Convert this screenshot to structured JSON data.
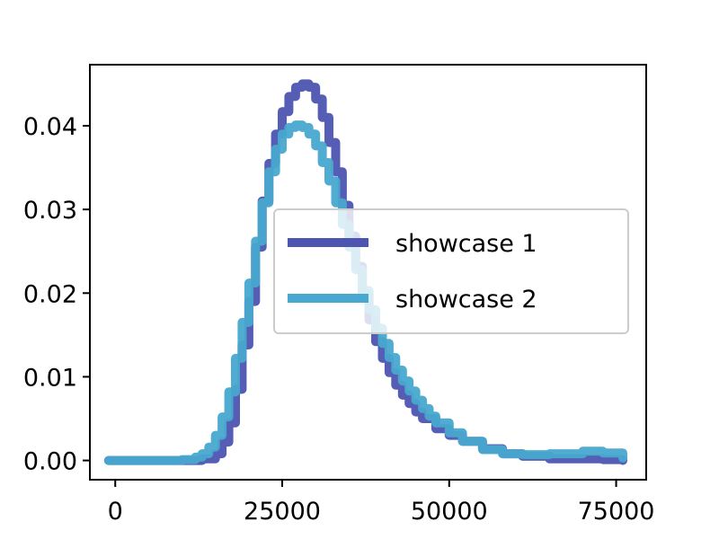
{
  "chart_data": {
    "type": "line",
    "title": "",
    "xlabel": "",
    "ylabel": "",
    "xlim": [
      -3800,
      79500
    ],
    "ylim": [
      -0.0023,
      0.0473
    ],
    "xticks": [
      0,
      25000,
      50000,
      75000
    ],
    "xtick_labels": [
      "0",
      "25000",
      "50000",
      "75000"
    ],
    "yticks": [
      0.0,
      0.01,
      0.02,
      0.03,
      0.04
    ],
    "ytick_labels": [
      "0.00",
      "0.01",
      "0.02",
      "0.03",
      "0.04"
    ],
    "grid": false,
    "legend": {
      "position": "center-right"
    },
    "series": [
      {
        "name": "showcase 1",
        "color": "#4c55b0",
        "x": [
          -1000,
          5000,
          10000,
          13000,
          15000,
          16000,
          17000,
          18000,
          19000,
          20000,
          21000,
          22000,
          23000,
          24000,
          25000,
          26000,
          27000,
          28000,
          29000,
          30000,
          31000,
          32000,
          33000,
          34000,
          35000,
          36000,
          37000,
          38000,
          39000,
          40000,
          41000,
          42000,
          43000,
          44000,
          45000,
          46000,
          48000,
          50000,
          52000,
          55000,
          58000,
          61000,
          65000,
          70000,
          73000,
          76000
        ],
        "y": [
          0.0,
          0.0,
          0.0,
          0.0002,
          0.0008,
          0.0022,
          0.0045,
          0.0085,
          0.0138,
          0.019,
          0.0255,
          0.031,
          0.0355,
          0.039,
          0.0417,
          0.0435,
          0.0446,
          0.045,
          0.0446,
          0.0432,
          0.041,
          0.038,
          0.0345,
          0.0305,
          0.0268,
          0.0232,
          0.0198,
          0.0168,
          0.0142,
          0.0122,
          0.0105,
          0.009,
          0.0078,
          0.0068,
          0.0058,
          0.005,
          0.0038,
          0.003,
          0.0023,
          0.0014,
          0.0008,
          0.0005,
          0.0002,
          0.0002,
          0.0001,
          0.0
        ]
      },
      {
        "name": "showcase 2",
        "color": "#48a8cf",
        "x": [
          -1000,
          5000,
          10000,
          12000,
          13000,
          14000,
          15000,
          16000,
          17000,
          18000,
          19000,
          20000,
          21000,
          22000,
          23000,
          24000,
          25000,
          26000,
          27000,
          28000,
          29000,
          30000,
          31000,
          32000,
          33000,
          34000,
          35000,
          36000,
          37000,
          38000,
          39000,
          40000,
          41000,
          42000,
          43000,
          44000,
          45000,
          46000,
          47000,
          48000,
          50000,
          52000,
          55000,
          58000,
          61000,
          65000,
          70000,
          73000,
          76000
        ],
        "y": [
          0.0,
          0.0,
          0.0001,
          0.0004,
          0.0008,
          0.0016,
          0.003,
          0.0052,
          0.0082,
          0.0122,
          0.0165,
          0.0212,
          0.0262,
          0.0308,
          0.0345,
          0.0372,
          0.039,
          0.0398,
          0.0401,
          0.0398,
          0.039,
          0.0376,
          0.0356,
          0.0334,
          0.0308,
          0.0282,
          0.0255,
          0.0228,
          0.0203,
          0.018,
          0.0158,
          0.014,
          0.0123,
          0.0108,
          0.0095,
          0.0083,
          0.0072,
          0.0062,
          0.0053,
          0.0045,
          0.0033,
          0.0023,
          0.0013,
          0.0008,
          0.0007,
          0.0008,
          0.0011,
          0.0009,
          0.0003
        ]
      }
    ]
  }
}
